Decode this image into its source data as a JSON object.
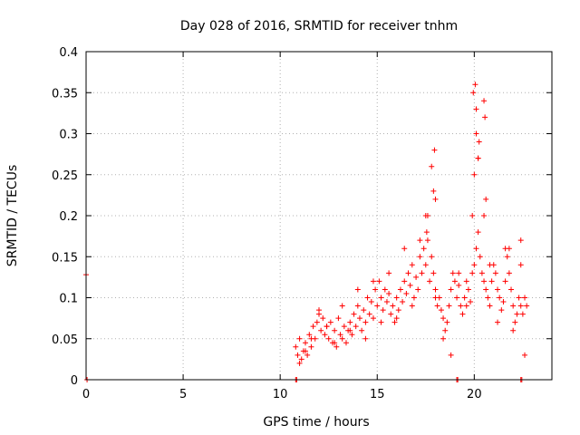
{
  "chart_data": {
    "type": "scatter",
    "title": "Day 028 of 2016, SRMTID for receiver tnhm",
    "xlabel": "GPS time / hours",
    "ylabel": "SRMTID / TECUs",
    "xlim": [
      0,
      24
    ],
    "ylim": [
      0,
      0.4
    ],
    "xticks": [
      0,
      5,
      10,
      15,
      20
    ],
    "xtick_labels": [
      "0",
      "5",
      "10",
      "15",
      "20"
    ],
    "yticks": [
      0,
      0.05,
      0.1,
      0.15,
      0.2,
      0.25,
      0.3,
      0.35,
      0.4
    ],
    "ytick_labels": [
      "0",
      "0.05",
      "0.1",
      "0.15",
      "0.2",
      "0.25",
      "0.3",
      "0.35",
      "0.4"
    ],
    "grid": true,
    "marker": "plus",
    "color": "#ff0000",
    "series": [
      {
        "name": "SRMTID",
        "x": [
          0.0,
          0.05,
          10.8,
          10.9,
          11.0,
          11.1,
          11.2,
          11.3,
          11.4,
          11.5,
          11.6,
          11.7,
          11.8,
          11.9,
          12.0,
          12.1,
          12.2,
          12.3,
          12.4,
          12.5,
          12.6,
          12.7,
          12.8,
          12.9,
          13.0,
          13.1,
          13.2,
          13.3,
          13.4,
          13.5,
          13.6,
          13.7,
          13.8,
          13.9,
          14.0,
          14.1,
          14.2,
          14.3,
          14.4,
          14.5,
          14.6,
          14.7,
          14.8,
          14.9,
          15.0,
          15.1,
          15.2,
          15.3,
          15.4,
          15.5,
          15.6,
          15.7,
          15.8,
          15.9,
          16.0,
          16.1,
          16.2,
          16.3,
          16.4,
          16.5,
          16.6,
          16.7,
          16.8,
          16.9,
          17.0,
          17.1,
          17.2,
          17.3,
          17.4,
          17.5,
          17.6,
          17.7,
          17.8,
          17.9,
          18.0,
          18.1,
          18.2,
          18.3,
          18.4,
          18.5,
          18.6,
          18.7,
          18.8,
          18.9,
          19.0,
          19.1,
          19.2,
          19.3,
          19.4,
          19.5,
          19.6,
          19.7,
          19.8,
          19.9,
          20.0,
          20.1,
          20.2,
          20.3,
          20.4,
          20.5,
          20.6,
          20.7,
          20.8,
          20.9,
          21.0,
          21.1,
          21.2,
          21.3,
          21.4,
          21.5,
          21.6,
          21.7,
          21.8,
          21.9,
          22.0,
          22.1,
          22.2,
          22.3,
          22.4,
          22.5,
          22.6,
          22.7,
          11.0,
          11.3,
          11.6,
          12.0,
          12.4,
          12.8,
          13.2,
          13.6,
          14.0,
          14.4,
          14.8,
          15.2,
          15.6,
          16.0,
          16.4,
          16.8,
          17.2,
          17.6,
          17.8,
          18.0,
          18.4,
          18.8,
          19.2,
          19.6,
          19.9,
          20.0,
          20.1,
          20.2,
          20.5,
          20.8,
          21.2,
          21.6,
          22.0,
          22.4,
          22.6,
          17.5,
          17.55,
          17.9,
          17.95,
          18.0,
          19.95,
          20.05,
          20.1,
          20.2,
          20.25,
          20.5,
          20.55,
          20.6,
          21.8,
          22.4,
          10.8,
          10.85,
          19.1,
          19.15,
          22.4,
          22.45
        ],
        "y": [
          0.128,
          0.0,
          0.04,
          0.03,
          0.05,
          0.025,
          0.035,
          0.045,
          0.03,
          0.055,
          0.04,
          0.065,
          0.05,
          0.07,
          0.08,
          0.06,
          0.075,
          0.055,
          0.065,
          0.05,
          0.07,
          0.045,
          0.06,
          0.04,
          0.075,
          0.055,
          0.05,
          0.065,
          0.045,
          0.06,
          0.07,
          0.055,
          0.08,
          0.065,
          0.09,
          0.075,
          0.06,
          0.085,
          0.07,
          0.1,
          0.08,
          0.095,
          0.075,
          0.11,
          0.09,
          0.12,
          0.1,
          0.085,
          0.11,
          0.095,
          0.105,
          0.08,
          0.09,
          0.07,
          0.1,
          0.085,
          0.11,
          0.095,
          0.12,
          0.105,
          0.13,
          0.115,
          0.14,
          0.1,
          0.125,
          0.11,
          0.15,
          0.13,
          0.16,
          0.14,
          0.17,
          0.12,
          0.15,
          0.13,
          0.11,
          0.09,
          0.1,
          0.085,
          0.075,
          0.06,
          0.07,
          0.09,
          0.11,
          0.13,
          0.12,
          0.1,
          0.115,
          0.09,
          0.08,
          0.1,
          0.12,
          0.11,
          0.095,
          0.13,
          0.14,
          0.16,
          0.18,
          0.15,
          0.13,
          0.12,
          0.11,
          0.1,
          0.09,
          0.12,
          0.14,
          0.13,
          0.11,
          0.1,
          0.085,
          0.095,
          0.12,
          0.15,
          0.13,
          0.11,
          0.09,
          0.07,
          0.08,
          0.1,
          0.09,
          0.08,
          0.1,
          0.09,
          0.02,
          0.035,
          0.05,
          0.085,
          0.065,
          0.045,
          0.09,
          0.06,
          0.11,
          0.05,
          0.12,
          0.07,
          0.13,
          0.075,
          0.16,
          0.09,
          0.17,
          0.2,
          0.26,
          0.1,
          0.05,
          0.03,
          0.13,
          0.09,
          0.2,
          0.25,
          0.3,
          0.27,
          0.2,
          0.14,
          0.07,
          0.16,
          0.06,
          0.14,
          0.03,
          0.2,
          0.18,
          0.23,
          0.28,
          0.22,
          0.35,
          0.36,
          0.33,
          0.27,
          0.29,
          0.34,
          0.32,
          0.22,
          0.16,
          0.17,
          0.0,
          0.0,
          0.0,
          0.0,
          0.0,
          0.0
        ]
      }
    ]
  }
}
